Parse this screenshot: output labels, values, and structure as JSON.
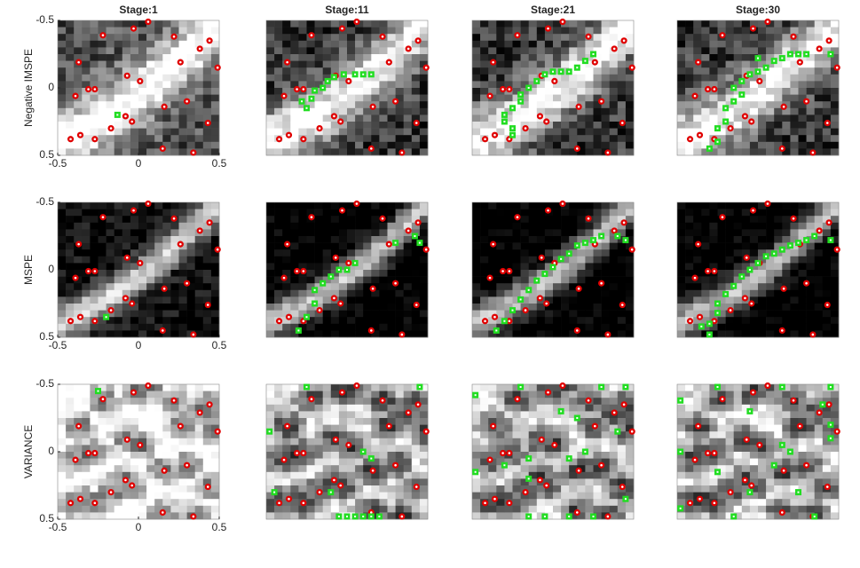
{
  "design_points": {
    "x": [
      -0.22,
      -0.03,
      0.06,
      0.22,
      0.44,
      0.38,
      0.49,
      0.26,
      -0.37,
      -0.31,
      -0.27,
      -0.39,
      -0.07,
      0.01,
      0.3,
      0.16,
      0.43,
      -0.08,
      -0.04,
      -0.17,
      -0.36,
      -0.42,
      -0.27,
      0.15,
      0.34
    ],
    "y": [
      -0.39,
      -0.44,
      -0.49,
      -0.38,
      -0.35,
      -0.29,
      -0.15,
      -0.19,
      -0.19,
      0.01,
      0.01,
      0.06,
      -0.09,
      -0.05,
      0.1,
      0.14,
      0.26,
      0.21,
      0.25,
      0.3,
      0.35,
      0.38,
      0.38,
      0.45,
      0.48
    ],
    "color": "#e00000"
  },
  "added_color": "#22dd22",
  "chart_data": [
    {
      "type": "scatter",
      "title": "Stage:1",
      "ylabel": "Negative IMSPE",
      "xlim": [
        -0.5,
        0.5
      ],
      "ylim": [
        -0.5,
        0.5
      ],
      "y_reversed": true,
      "xticks": [
        -0.5,
        0,
        0.5
      ],
      "yticks": [
        -0.5,
        0,
        0.5
      ],
      "added": {
        "x": [
          -0.13
        ],
        "y": [
          0.2
        ]
      }
    },
    {
      "type": "scatter",
      "title": "Stage:11",
      "xlim": [
        -0.5,
        0.5
      ],
      "ylim": [
        -0.5,
        0.5
      ],
      "y_reversed": true,
      "added": {
        "x": [
          -0.28,
          -0.25,
          -0.22,
          -0.2,
          -0.15,
          -0.12,
          -0.08,
          -0.02,
          0.05,
          0.1,
          0.15
        ],
        "y": [
          0.1,
          0.15,
          0.08,
          0.02,
          0.0,
          -0.05,
          -0.08,
          -0.1,
          -0.1,
          -0.1,
          -0.1
        ]
      }
    },
    {
      "type": "scatter",
      "title": "Stage:21",
      "xlim": [
        -0.5,
        0.5
      ],
      "ylim": [
        -0.5,
        0.5
      ],
      "y_reversed": true,
      "added": {
        "x": [
          -0.25,
          -0.25,
          -0.3,
          -0.3,
          -0.25,
          -0.2,
          -0.2,
          -0.15,
          -0.1,
          -0.05,
          0.0,
          0.05,
          0.1,
          0.15,
          0.2,
          0.25
        ],
        "y": [
          0.35,
          0.3,
          0.25,
          0.2,
          0.15,
          0.1,
          0.05,
          0.0,
          -0.05,
          -0.1,
          -0.12,
          -0.12,
          -0.12,
          -0.15,
          -0.2,
          -0.25
        ]
      }
    },
    {
      "type": "scatter",
      "title": "Stage:30",
      "xlim": [
        -0.5,
        0.5
      ],
      "ylim": [
        -0.5,
        0.5
      ],
      "y_reversed": true,
      "added": {
        "x": [
          -0.3,
          -0.25,
          -0.25,
          -0.2,
          -0.2,
          -0.15,
          -0.15,
          -0.1,
          -0.05,
          0.0,
          0.05,
          0.1,
          0.15,
          0.2,
          0.25,
          0.3,
          0.45,
          -0.1,
          0.0
        ],
        "y": [
          0.45,
          0.4,
          0.3,
          0.25,
          0.15,
          0.1,
          0.0,
          -0.05,
          -0.1,
          -0.12,
          -0.15,
          -0.2,
          -0.22,
          -0.25,
          -0.25,
          -0.25,
          -0.25,
          0.05,
          -0.22
        ]
      }
    },
    {
      "type": "scatter",
      "ylabel": "MSPE",
      "xlim": [
        -0.5,
        0.5
      ],
      "ylim": [
        -0.5,
        0.5
      ],
      "y_reversed": true,
      "xticks": [
        -0.5,
        0,
        0.5
      ],
      "yticks": [
        -0.5,
        0,
        0.5
      ],
      "added": {
        "x": [
          -0.2
        ],
        "y": [
          0.35
        ]
      }
    },
    {
      "type": "scatter",
      "xlim": [
        -0.5,
        0.5
      ],
      "ylim": [
        -0.5,
        0.5
      ],
      "y_reversed": true,
      "added": {
        "x": [
          -0.3,
          -0.25,
          -0.2,
          -0.2,
          -0.15,
          -0.1,
          -0.05,
          0.0,
          0.05,
          0.3,
          0.42,
          0.45
        ],
        "y": [
          0.45,
          0.35,
          0.25,
          0.15,
          0.1,
          0.05,
          0.0,
          0.0,
          -0.05,
          -0.2,
          -0.25,
          -0.2
        ]
      }
    },
    {
      "type": "scatter",
      "xlim": [
        -0.5,
        0.5
      ],
      "ylim": [
        -0.5,
        0.5
      ],
      "y_reversed": true,
      "added": {
        "x": [
          -0.35,
          -0.3,
          -0.25,
          -0.2,
          -0.15,
          -0.1,
          -0.05,
          0.0,
          0.05,
          0.1,
          0.15,
          0.2,
          0.25,
          0.3,
          0.4,
          0.45
        ],
        "y": [
          0.45,
          0.38,
          0.3,
          0.22,
          0.15,
          0.08,
          0.03,
          -0.02,
          -0.08,
          -0.12,
          -0.18,
          -0.2,
          -0.22,
          -0.25,
          -0.25,
          -0.22
        ]
      }
    },
    {
      "type": "scatter",
      "xlim": [
        -0.5,
        0.5
      ],
      "ylim": [
        -0.5,
        0.5
      ],
      "y_reversed": true,
      "added": {
        "x": [
          -0.3,
          -0.3,
          -0.25,
          -0.25,
          -0.2,
          -0.15,
          -0.1,
          -0.05,
          0.0,
          0.05,
          0.1,
          0.15,
          0.2,
          0.25,
          0.3,
          0.35,
          0.45,
          -0.35
        ],
        "y": [
          0.48,
          0.4,
          0.32,
          0.25,
          0.18,
          0.12,
          0.05,
          0.0,
          -0.05,
          -0.1,
          -0.12,
          -0.15,
          -0.18,
          -0.2,
          -0.22,
          -0.25,
          -0.22,
          0.42
        ]
      }
    },
    {
      "type": "scatter",
      "ylabel": "VARIANCE",
      "xlim": [
        -0.5,
        0.5
      ],
      "ylim": [
        -0.5,
        0.5
      ],
      "y_reversed": true,
      "xticks": [
        -0.5,
        0,
        0.5
      ],
      "yticks": [
        -0.5,
        0,
        0.5
      ],
      "added": {
        "x": [
          -0.25
        ],
        "y": [
          -0.45
        ]
      }
    },
    {
      "type": "scatter",
      "xlim": [
        -0.5,
        0.5
      ],
      "ylim": [
        -0.5,
        0.5
      ],
      "y_reversed": true,
      "added": {
        "x": [
          -0.25,
          0.45,
          -0.48,
          0.1,
          0.15,
          -0.1,
          -0.45,
          -0.05,
          0.0,
          0.05,
          0.1,
          0.15,
          0.2
        ],
        "y": [
          -0.48,
          -0.48,
          -0.15,
          0.0,
          0.05,
          0.3,
          0.3,
          0.48,
          0.48,
          0.48,
          0.48,
          0.48,
          0.48
        ]
      }
    },
    {
      "type": "scatter",
      "xlim": [
        -0.5,
        0.5
      ],
      "ylim": [
        -0.5,
        0.5
      ],
      "y_reversed": true,
      "added": {
        "x": [
          -0.48,
          -0.2,
          0.3,
          0.45,
          0.05,
          0.15,
          -0.15,
          -0.15,
          -0.48,
          0.2,
          -0.15,
          -0.05,
          0.1,
          0.25,
          0.45,
          0.1,
          0.4,
          -0.3
        ],
        "y": [
          -0.42,
          -0.48,
          -0.48,
          -0.48,
          -0.3,
          -0.25,
          0.05,
          0.2,
          0.15,
          0.0,
          0.48,
          0.48,
          0.48,
          0.48,
          0.35,
          0.05,
          -0.15,
          0.1
        ]
      }
    },
    {
      "type": "scatter",
      "xlim": [
        -0.5,
        0.5
      ],
      "ylim": [
        -0.5,
        0.5
      ],
      "y_reversed": true,
      "added": {
        "x": [
          -0.48,
          -0.25,
          0.15,
          0.45,
          0.45,
          -0.05,
          0.15,
          0.2,
          -0.25,
          0.45,
          -0.15,
          -0.48,
          0.35,
          -0.48,
          0.1,
          0.25,
          -0.05,
          0.4
        ],
        "y": [
          -0.38,
          -0.48,
          -0.48,
          -0.48,
          -0.2,
          -0.3,
          -0.05,
          0.0,
          0.15,
          -0.1,
          0.48,
          0.42,
          0.48,
          0.0,
          0.1,
          0.3,
          0.3,
          -0.35
        ]
      }
    }
  ]
}
